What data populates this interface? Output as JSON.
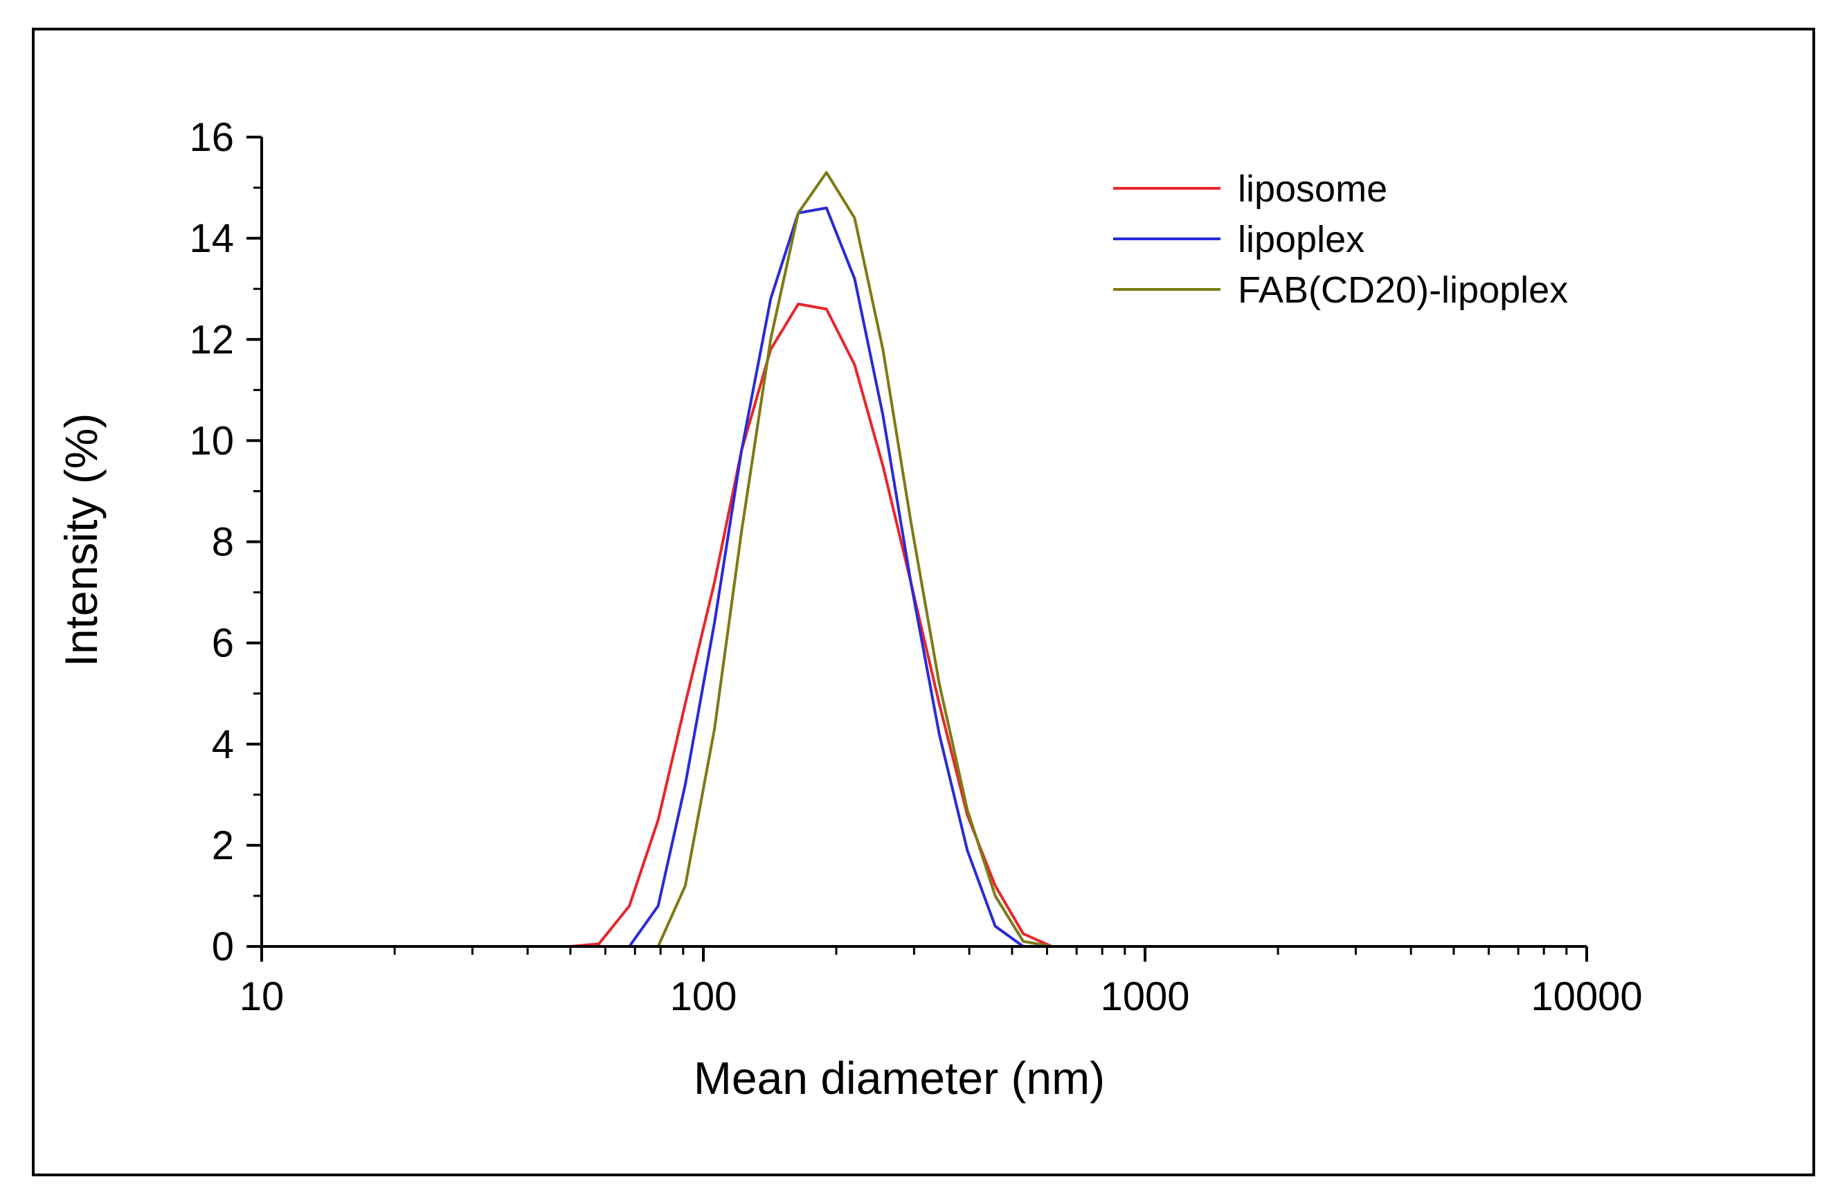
{
  "chart_data": {
    "type": "line",
    "title": "",
    "xlabel": "Mean diameter (nm)",
    "ylabel": "Intensity (%)",
    "xscale": "log",
    "xlim": [
      10,
      10000
    ],
    "ylim": [
      0,
      16
    ],
    "x_ticks": [
      10,
      100,
      1000,
      10000
    ],
    "x_tick_labels": [
      "10",
      "100",
      "1000",
      "10000"
    ],
    "y_ticks": [
      0,
      2,
      4,
      6,
      8,
      10,
      12,
      14,
      16
    ],
    "y_tick_labels": [
      "0",
      "2",
      "4",
      "6",
      "8",
      "10",
      "12",
      "14",
      "16"
    ],
    "legend_position": "top-right",
    "grid": false,
    "series": [
      {
        "name": "liposome",
        "color": "#e8262a",
        "x": [
          10,
          50,
          58,
          68,
          79,
          91,
          106,
          122,
          142,
          164,
          190,
          220,
          255,
          295,
          342,
          396,
          458,
          530,
          615,
          700,
          1000,
          8600
        ],
        "y": [
          0,
          0,
          0.05,
          0.8,
          2.5,
          4.8,
          7.2,
          9.8,
          11.8,
          12.7,
          12.6,
          11.5,
          9.5,
          7.2,
          4.8,
          2.6,
          1.2,
          0.25,
          0,
          0,
          0,
          0
        ]
      },
      {
        "name": "lipoplex",
        "color": "#2a2ad8",
        "x": [
          10,
          60,
          68,
          79,
          91,
          106,
          122,
          142,
          164,
          190,
          220,
          255,
          295,
          342,
          396,
          458,
          530,
          615,
          1000,
          8600
        ],
        "y": [
          0,
          0,
          0,
          0.8,
          3.2,
          6.4,
          9.8,
          12.8,
          14.5,
          14.6,
          13.2,
          10.5,
          7.2,
          4.2,
          1.9,
          0.4,
          0,
          0,
          0,
          0
        ]
      },
      {
        "name": "FAB(CD20)-lipoplex",
        "color": "#7d7a14",
        "x": [
          10,
          70,
          79,
          91,
          106,
          122,
          142,
          164,
          190,
          220,
          255,
          295,
          342,
          396,
          458,
          530,
          615,
          1000,
          8600
        ],
        "y": [
          0,
          0,
          0,
          1.2,
          4.3,
          8.2,
          12.0,
          14.5,
          15.3,
          14.4,
          11.8,
          8.4,
          5.2,
          2.7,
          1.0,
          0.1,
          0,
          0,
          0
        ]
      }
    ]
  }
}
